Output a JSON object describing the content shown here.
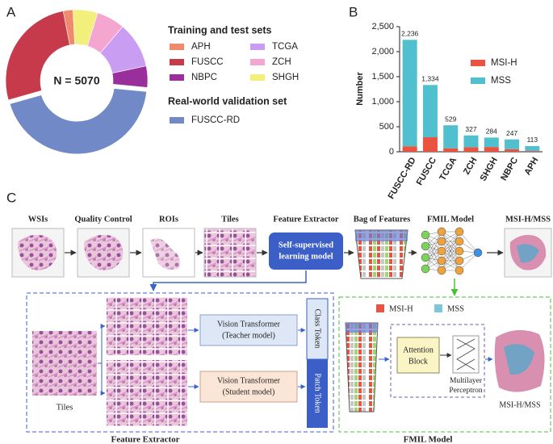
{
  "panel_labels": [
    "A",
    "B",
    "C"
  ],
  "chart_data": [
    {
      "type": "donut",
      "center_label": "N = 5070",
      "groups": [
        {
          "name": "Training and test sets",
          "categories": [
            "APH",
            "FUSCC",
            "NBPC",
            "TCGA",
            "ZCH",
            "SHGH"
          ],
          "values": [
            113,
            1334,
            247,
            529,
            327,
            284
          ],
          "colors": [
            "#f08a6c",
            "#c63a4b",
            "#9a2f9c",
            "#c99ef2",
            "#f5a6d0",
            "#f3ef7c"
          ]
        },
        {
          "name": "Real-world validation set",
          "categories": [
            "FUSCC-RD"
          ],
          "values": [
            2236
          ],
          "colors": [
            "#7189c7"
          ]
        }
      ]
    },
    {
      "type": "stacked_bar",
      "ylabel": "Number",
      "categories": [
        "FUSCC-RD",
        "FUSCC",
        "TCGA",
        "ZCH",
        "SHGH",
        "NBPC",
        "APH"
      ],
      "series": [
        {
          "name": "MSI-H",
          "color": "#e9533f",
          "values": [
            110,
            290,
            70,
            90,
            95,
            50,
            15
          ]
        },
        {
          "name": "MSS",
          "color": "#50c0cf",
          "values": [
            2126,
            1044,
            459,
            237,
            189,
            197,
            98
          ]
        }
      ],
      "total_labels": [
        "2,236",
        "1,334",
        "529",
        "327",
        "284",
        "247",
        "113"
      ],
      "ylim": [
        0,
        2500
      ],
      "yticks": [
        0,
        500,
        {
          "value": 1000,
          "label": "1,000"
        },
        {
          "value": 1500,
          "label": "1,500"
        },
        {
          "value": 2000,
          "label": "2,000"
        },
        {
          "value": 2500,
          "label": "2,500"
        }
      ],
      "legend": "upper right"
    }
  ],
  "diagram": {
    "steps": [
      "WSIs",
      "Quality Control",
      "ROIs",
      "Tiles",
      "Feature Extractor",
      "Bag of Features",
      "FMIL Model",
      "MSI-H/MSS"
    ],
    "ssl_box": [
      "Self-supervised",
      "learning model"
    ],
    "extractor": {
      "tiles_label": "Tiles",
      "teacher": [
        "Vision Transformer",
        "(Teacher model)"
      ],
      "student": [
        "Vision Transformer",
        "(Student model)"
      ],
      "class_token": "Class Token",
      "patch_token": "Patch Token",
      "caption": "Feature Extractor"
    },
    "fmil": {
      "legend": [
        "MSI-H",
        "MSS"
      ],
      "attention": [
        "Attention",
        "Block"
      ],
      "mlp": [
        "Multilayer",
        "Perceptron"
      ],
      "output": "MSI-H/MSS",
      "caption": "FMIL Model"
    }
  }
}
